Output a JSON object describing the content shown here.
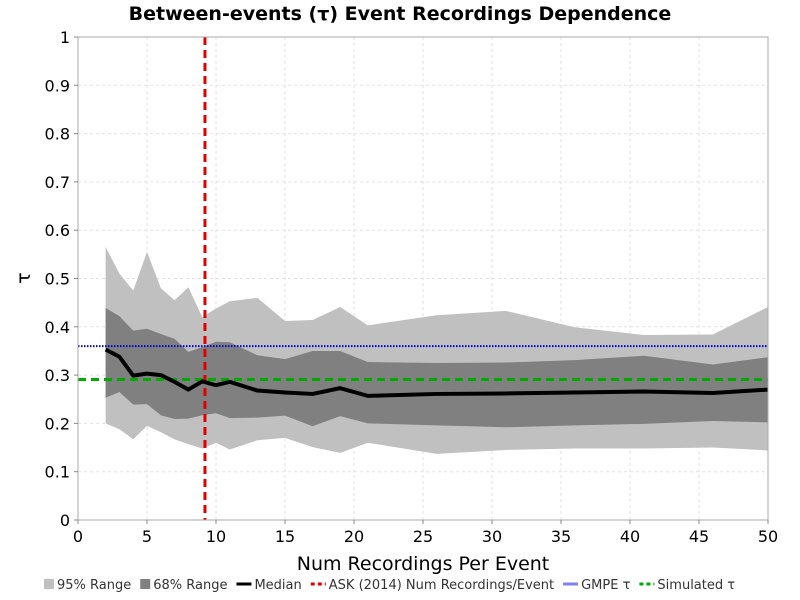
{
  "chart_data": {
    "type": "line",
    "title": "Between-events (τ) Event Recordings Dependence",
    "xlabel": "Num Recordings Per Event",
    "ylabel": "τ",
    "xlim": [
      0,
      50
    ],
    "ylim": [
      0,
      1
    ],
    "xticks": [
      "0",
      "5",
      "10",
      "15",
      "20",
      "25",
      "30",
      "35",
      "40",
      "45",
      "50"
    ],
    "yticks": [
      "0",
      "0.1",
      "0.2",
      "0.3",
      "0.4",
      "0.5",
      "0.6",
      "0.7",
      "0.8",
      "0.9",
      "1"
    ],
    "grid": true,
    "legend_position": "bottom",
    "x": [
      2,
      3,
      4,
      5,
      6,
      7,
      8,
      9,
      10,
      11,
      13,
      15,
      17,
      19,
      21,
      26,
      31,
      36,
      41,
      46,
      50
    ],
    "band95": {
      "name": "95% Range",
      "color": "#c0c0c0",
      "upper": [
        0.565,
        0.51,
        0.475,
        0.555,
        0.48,
        0.455,
        0.482,
        0.42,
        0.438,
        0.453,
        0.46,
        0.412,
        0.414,
        0.441,
        0.403,
        0.424,
        0.433,
        0.399,
        0.383,
        0.384,
        0.441
      ],
      "lower": [
        0.2,
        0.188,
        0.167,
        0.195,
        0.182,
        0.167,
        0.157,
        0.148,
        0.16,
        0.146,
        0.165,
        0.17,
        0.151,
        0.139,
        0.16,
        0.137,
        0.145,
        0.148,
        0.148,
        0.15,
        0.144
      ]
    },
    "band68": {
      "name": "68% Range",
      "color": "#808080",
      "upper": [
        0.439,
        0.422,
        0.392,
        0.396,
        0.385,
        0.375,
        0.348,
        0.358,
        0.369,
        0.368,
        0.341,
        0.333,
        0.35,
        0.35,
        0.327,
        0.325,
        0.326,
        0.331,
        0.34,
        0.322,
        0.337
      ],
      "lower": [
        0.253,
        0.265,
        0.239,
        0.24,
        0.217,
        0.209,
        0.21,
        0.217,
        0.221,
        0.211,
        0.212,
        0.216,
        0.194,
        0.215,
        0.2,
        0.196,
        0.192,
        0.196,
        0.199,
        0.205,
        0.202
      ]
    },
    "series": [
      {
        "name": "Median",
        "color": "#000000",
        "values": [
          0.353,
          0.338,
          0.299,
          0.303,
          0.3,
          0.286,
          0.27,
          0.287,
          0.279,
          0.286,
          0.268,
          0.264,
          0.261,
          0.273,
          0.257,
          0.261,
          0.262,
          0.264,
          0.266,
          0.263,
          0.27
        ]
      }
    ],
    "reference_lines": [
      {
        "name": "ASK (2014) Num Recordings/Event",
        "orientation": "vertical",
        "value": 9.2,
        "color": "#e00000",
        "style": "dashed"
      },
      {
        "name": "GMPE τ",
        "orientation": "horizontal",
        "value": 0.36,
        "color": "#0000cc",
        "style": "dotted",
        "legend_color": "#8080ee"
      },
      {
        "name": "Simulated τ",
        "orientation": "horizontal",
        "value": 0.291,
        "color": "#00aa00",
        "style": "dashed"
      }
    ]
  }
}
